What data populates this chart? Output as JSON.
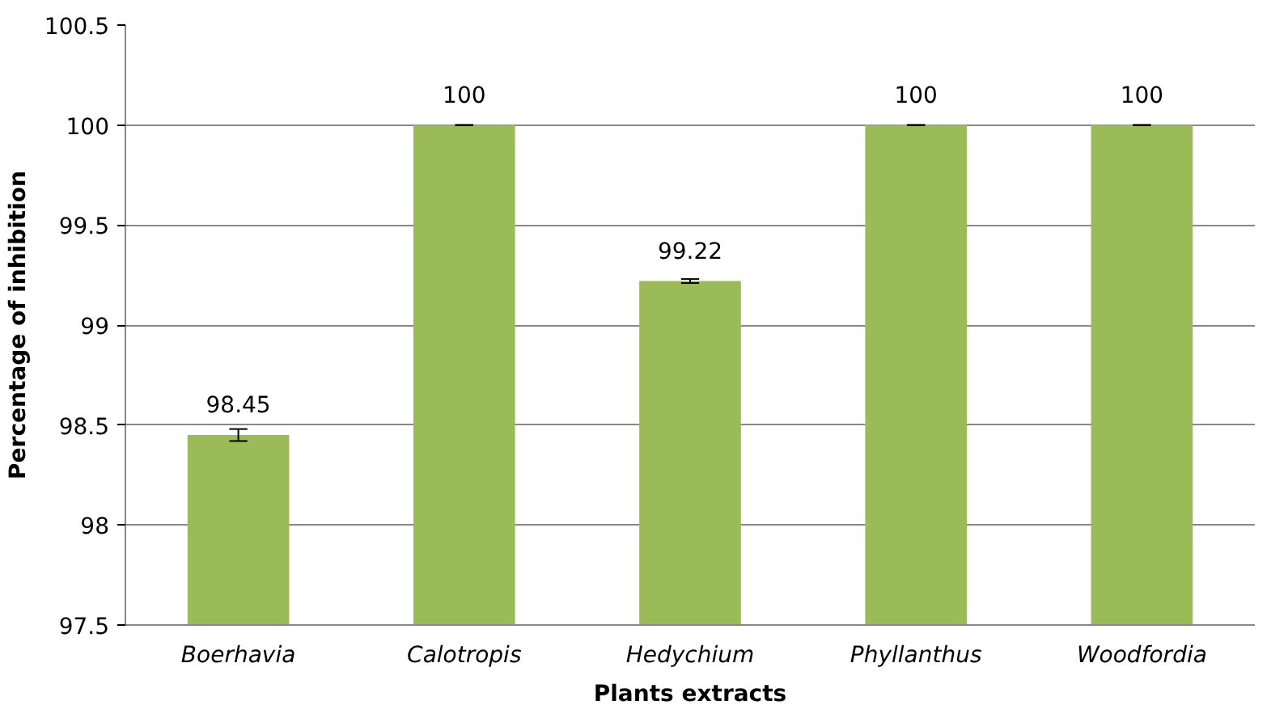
{
  "chart_data": {
    "type": "bar",
    "xlabel": "Plants extracts",
    "ylabel": "Percentage of inhibition",
    "categories": [
      "Boerhavia",
      "Calotropis",
      "Hedychium",
      "Phyllanthus",
      "Woodfordia"
    ],
    "values": [
      98.45,
      100,
      99.22,
      100,
      100
    ],
    "errors": [
      0.03,
      0,
      0.01,
      0,
      0
    ],
    "color": "#9bbb59",
    "ylim": [
      97.5,
      100.5
    ],
    "yticks": [
      97.5,
      98,
      98.5,
      99,
      99.5,
      100,
      100.5
    ],
    "grid": "y",
    "data_labels": true
  }
}
